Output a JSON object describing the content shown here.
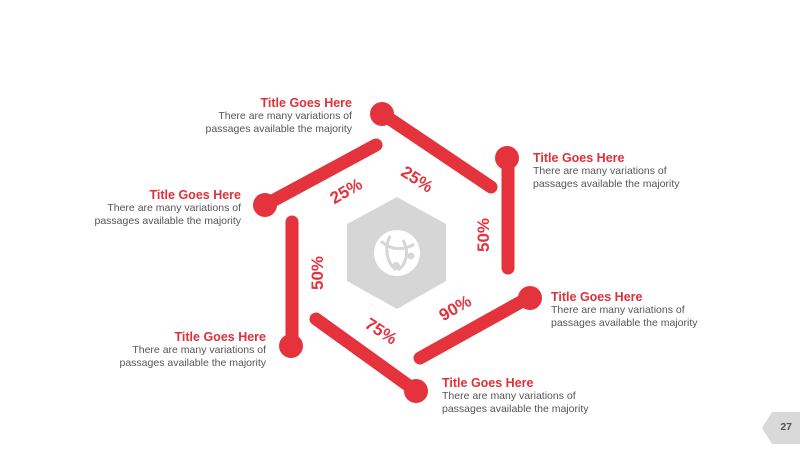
{
  "colors": {
    "accent": "#e5333d",
    "hexagon": "#d6d6d6",
    "text": "#555555",
    "page_tab": "#d9d9d9"
  },
  "center_icon": "globe-network-icon",
  "segments": [
    {
      "label": "25%"
    },
    {
      "label": "25%"
    },
    {
      "label": "50%"
    },
    {
      "label": "90%"
    },
    {
      "label": "75%"
    },
    {
      "label": "50%"
    }
  ],
  "items": [
    {
      "title": "Title Goes Here",
      "line1": "There are many variations of",
      "line2": "passages available the majority"
    },
    {
      "title": "Title Goes Here",
      "line1": "There are many variations of",
      "line2": "passages available the majority"
    },
    {
      "title": "Title Goes Here",
      "line1": "There are many variations of",
      "line2": "passages available the majority"
    },
    {
      "title": "Title Goes Here",
      "line1": "There are many variations of",
      "line2": "passages available the majority"
    },
    {
      "title": "Title Goes Here",
      "line1": "There are many variations of",
      "line2": "passages available the majority"
    },
    {
      "title": "Title Goes Here",
      "line1": "There are many variations of",
      "line2": "passages available the majority"
    }
  ],
  "page_number": "27"
}
